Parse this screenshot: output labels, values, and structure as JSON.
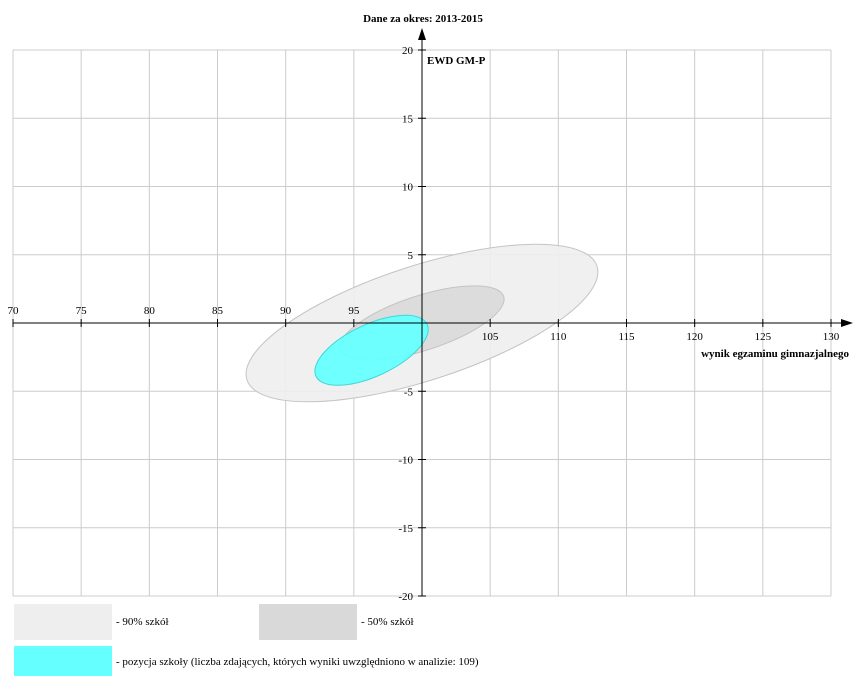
{
  "chart_data": {
    "type": "scatter",
    "title": "Dane za okres: 2013-2015",
    "xlabel": "wynik egzaminu gimnazjalnego",
    "ylabel": "EWD GM-P",
    "xlim": [
      70,
      130
    ],
    "ylim": [
      -20,
      20
    ],
    "x_ticks": [
      70,
      75,
      80,
      85,
      90,
      95,
      105,
      110,
      115,
      120,
      125,
      130
    ],
    "y_ticks": [
      20,
      15,
      10,
      5,
      -5,
      -10,
      -15,
      -20
    ],
    "grid": true,
    "ellipses": [
      {
        "series": "90% szkół",
        "cx": 100,
        "cy": 0,
        "rx": 13.5,
        "ry": 4.2,
        "angle_deg": -18,
        "color": "#eeeeee"
      },
      {
        "series": "50% szkół",
        "cx": 100,
        "cy": 0,
        "rx": 6.3,
        "ry": 2.0,
        "angle_deg": -18,
        "color": "#d9d9d9"
      },
      {
        "series": "pozycja szkoły",
        "cx": 96.3,
        "cy": -2.0,
        "rx": 4.5,
        "ry": 1.9,
        "angle_deg": -25,
        "color": "#66ffff"
      }
    ],
    "legend": [
      {
        "label": "- 90% szkół",
        "color": "#eeeeee"
      },
      {
        "label": "- 50% szkół",
        "color": "#d9d9d9"
      },
      {
        "label": "- pozycja szkoły (liczba zdających, których wyniki uwzględniono w analizie: 109)",
        "color": "#66ffff"
      }
    ],
    "legend_position": "bottom"
  }
}
